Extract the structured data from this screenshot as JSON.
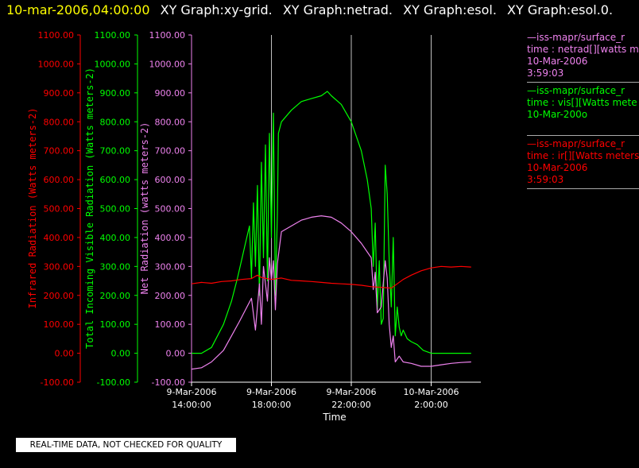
{
  "header": {
    "timestamp": "10-mar-2006,04:00:00",
    "graphs": [
      "XY Graph:xy-grid.",
      "XY Graph:netrad.",
      "XY Graph:esol.",
      "XY Graph:esol.0."
    ]
  },
  "notice": "REAL-TIME DATA, NOT CHECKED FOR QUALITY",
  "legend": [
    {
      "line1": "—iss-mapr/surface_r",
      "line2": "time : netrad[][watts m",
      "line3": "10-Mar-2006",
      "line4": "3:59:03",
      "color": "#ee82ee"
    },
    {
      "line1": "—iss-mapr/surface_r",
      "line2": "time : vis[][Watts mete",
      "line3": "10-Mar-200o",
      "line4": "",
      "color": "#00ff00"
    },
    {
      "line1": "—iss-mapr/surface_r",
      "line2": "time : ir[][Watts meters",
      "line3": "10-Mar-2006",
      "line4": "3:59:03",
      "color": "#ff0000"
    }
  ],
  "chart_data": {
    "type": "line",
    "xlabel": "Time",
    "x_ticks": [
      {
        "hours": 14,
        "line1": "9-Mar-2006",
        "line2": "14:00:00"
      },
      {
        "hours": 18,
        "line1": "9-Mar-2006",
        "line2": "18:00:00"
      },
      {
        "hours": 22,
        "line1": "9-Mar-2006",
        "line2": "22:00:00"
      },
      {
        "hours": 26,
        "line1": "10-Mar-2006",
        "line2": "2:00:00"
      }
    ],
    "x_range_hours": [
      14,
      28
    ],
    "axes": [
      {
        "label": "Infrared Radiation (Watts meters-2)",
        "color": "#ff0000",
        "ylim": [
          -100,
          1100
        ]
      },
      {
        "label": "Total Incoming Visible Radiation (Watts meters-2)",
        "color": "#00ff00",
        "ylim": [
          -100,
          1100
        ]
      },
      {
        "label": "Net Radiation (watts meters-2)",
        "color": "#ee82ee",
        "ylim": [
          -100,
          1100
        ]
      }
    ],
    "y_ticks": [
      "-100.00",
      "0.00",
      "100.00",
      "200.00",
      "300.00",
      "400.00",
      "500.00",
      "600.00",
      "700.00",
      "800.00",
      "900.00",
      "1000.00",
      "1100.00"
    ],
    "grid_x_hours": [
      18,
      22,
      26
    ],
    "series": [
      {
        "name": "vis",
        "color": "#00ff00",
        "points": [
          [
            14.0,
            0
          ],
          [
            14.5,
            0
          ],
          [
            15.0,
            20
          ],
          [
            15.3,
            60
          ],
          [
            15.6,
            100
          ],
          [
            16.0,
            180
          ],
          [
            16.3,
            260
          ],
          [
            16.5,
            320
          ],
          [
            16.7,
            380
          ],
          [
            16.9,
            440
          ],
          [
            17.0,
            260
          ],
          [
            17.1,
            520
          ],
          [
            17.2,
            300
          ],
          [
            17.3,
            580
          ],
          [
            17.4,
            200
          ],
          [
            17.5,
            660
          ],
          [
            17.6,
            330
          ],
          [
            17.7,
            720
          ],
          [
            17.8,
            250
          ],
          [
            17.9,
            760
          ],
          [
            18.0,
            400
          ],
          [
            18.1,
            830
          ],
          [
            18.2,
            200
          ],
          [
            18.3,
            480
          ],
          [
            18.35,
            760
          ],
          [
            18.5,
            800
          ],
          [
            19.0,
            840
          ],
          [
            19.5,
            870
          ],
          [
            20.0,
            880
          ],
          [
            20.5,
            890
          ],
          [
            20.8,
            905
          ],
          [
            21.0,
            890
          ],
          [
            21.5,
            860
          ],
          [
            22.0,
            800
          ],
          [
            22.5,
            700
          ],
          [
            22.8,
            600
          ],
          [
            23.0,
            500
          ],
          [
            23.1,
            300
          ],
          [
            23.2,
            450
          ],
          [
            23.3,
            150
          ],
          [
            23.4,
            320
          ],
          [
            23.5,
            100
          ],
          [
            23.6,
            120
          ],
          [
            23.65,
            400
          ],
          [
            23.7,
            650
          ],
          [
            23.8,
            550
          ],
          [
            23.9,
            320
          ],
          [
            24.0,
            160
          ],
          [
            24.1,
            400
          ],
          [
            24.2,
            60
          ],
          [
            24.3,
            160
          ],
          [
            24.4,
            90
          ],
          [
            24.5,
            60
          ],
          [
            24.6,
            80
          ],
          [
            24.8,
            50
          ],
          [
            25.0,
            40
          ],
          [
            25.3,
            30
          ],
          [
            25.6,
            10
          ],
          [
            26.0,
            0
          ],
          [
            27.0,
            0
          ],
          [
            28.0,
            0
          ]
        ]
      },
      {
        "name": "netrad",
        "color": "#ee82ee",
        "points": [
          [
            14.0,
            -55
          ],
          [
            14.5,
            -50
          ],
          [
            15.0,
            -30
          ],
          [
            15.3,
            -10
          ],
          [
            15.6,
            10
          ],
          [
            16.0,
            60
          ],
          [
            16.4,
            110
          ],
          [
            16.7,
            150
          ],
          [
            17.0,
            190
          ],
          [
            17.2,
            80
          ],
          [
            17.4,
            240
          ],
          [
            17.5,
            100
          ],
          [
            17.6,
            300
          ],
          [
            17.8,
            180
          ],
          [
            17.9,
            330
          ],
          [
            18.0,
            250
          ],
          [
            18.1,
            320
          ],
          [
            18.2,
            150
          ],
          [
            18.3,
            310
          ],
          [
            18.5,
            420
          ],
          [
            19.0,
            440
          ],
          [
            19.5,
            460
          ],
          [
            20.0,
            470
          ],
          [
            20.5,
            475
          ],
          [
            21.0,
            470
          ],
          [
            21.5,
            450
          ],
          [
            22.0,
            420
          ],
          [
            22.5,
            380
          ],
          [
            23.0,
            330
          ],
          [
            23.1,
            220
          ],
          [
            23.2,
            280
          ],
          [
            23.3,
            140
          ],
          [
            23.5,
            160
          ],
          [
            23.7,
            320
          ],
          [
            23.8,
            260
          ],
          [
            23.9,
            100
          ],
          [
            24.0,
            20
          ],
          [
            24.1,
            60
          ],
          [
            24.2,
            -30
          ],
          [
            24.4,
            -10
          ],
          [
            24.6,
            -30
          ],
          [
            25.0,
            -35
          ],
          [
            25.5,
            -45
          ],
          [
            26.0,
            -45
          ],
          [
            26.5,
            -40
          ],
          [
            27.0,
            -35
          ],
          [
            27.5,
            -32
          ],
          [
            28.0,
            -30
          ]
        ]
      },
      {
        "name": "ir",
        "color": "#ff0000",
        "points": [
          [
            14.0,
            240
          ],
          [
            14.5,
            245
          ],
          [
            15.0,
            242
          ],
          [
            15.5,
            248
          ],
          [
            16.0,
            250
          ],
          [
            16.5,
            255
          ],
          [
            17.0,
            258
          ],
          [
            17.3,
            270
          ],
          [
            17.5,
            262
          ],
          [
            18.0,
            255
          ],
          [
            18.5,
            260
          ],
          [
            19.0,
            252
          ],
          [
            19.5,
            250
          ],
          [
            20.0,
            248
          ],
          [
            20.5,
            245
          ],
          [
            21.0,
            242
          ],
          [
            21.5,
            240
          ],
          [
            22.0,
            238
          ],
          [
            22.5,
            235
          ],
          [
            23.0,
            230
          ],
          [
            23.5,
            228
          ],
          [
            24.0,
            225
          ],
          [
            24.3,
            240
          ],
          [
            24.6,
            255
          ],
          [
            25.0,
            270
          ],
          [
            25.5,
            285
          ],
          [
            26.0,
            295
          ],
          [
            26.5,
            300
          ],
          [
            27.0,
            298
          ],
          [
            27.5,
            300
          ],
          [
            28.0,
            298
          ]
        ]
      }
    ]
  }
}
